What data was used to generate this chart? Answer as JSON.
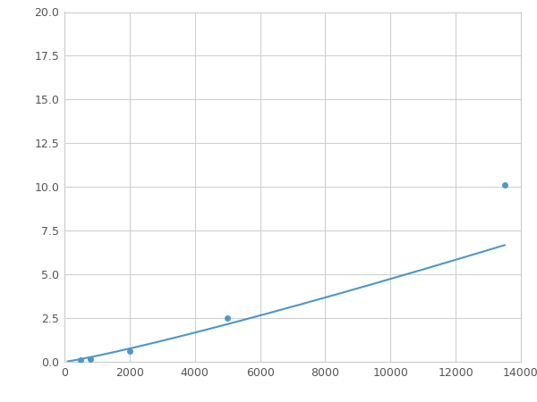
{
  "x_points": [
    100,
    500,
    800,
    2000,
    5000,
    13500
  ],
  "y_points": [
    0.05,
    0.1,
    0.15,
    0.6,
    2.5,
    10.1
  ],
  "line_color": "#4d96c9",
  "marker_color": "#4d96c9",
  "marker_size": 5,
  "line_width": 1.5,
  "xlim": [
    0,
    14000
  ],
  "ylim": [
    0,
    20
  ],
  "xticks": [
    0,
    2000,
    4000,
    6000,
    8000,
    10000,
    12000,
    14000
  ],
  "xticklabels": [
    "0",
    "2000",
    "4000",
    "6000",
    "8000",
    "10000",
    "12000",
    "14000"
  ],
  "yticks": [
    0.0,
    2.5,
    5.0,
    7.5,
    10.0,
    12.5,
    15.0,
    17.5,
    20.0
  ],
  "yticklabels": [
    "0.0",
    "2.5",
    "5.0",
    "7.5",
    "10.0",
    "12.5",
    "15.0",
    "17.5",
    "20.0"
  ],
  "grid_color": "#d0d0d0",
  "background_color": "#ffffff",
  "tick_fontsize": 9
}
